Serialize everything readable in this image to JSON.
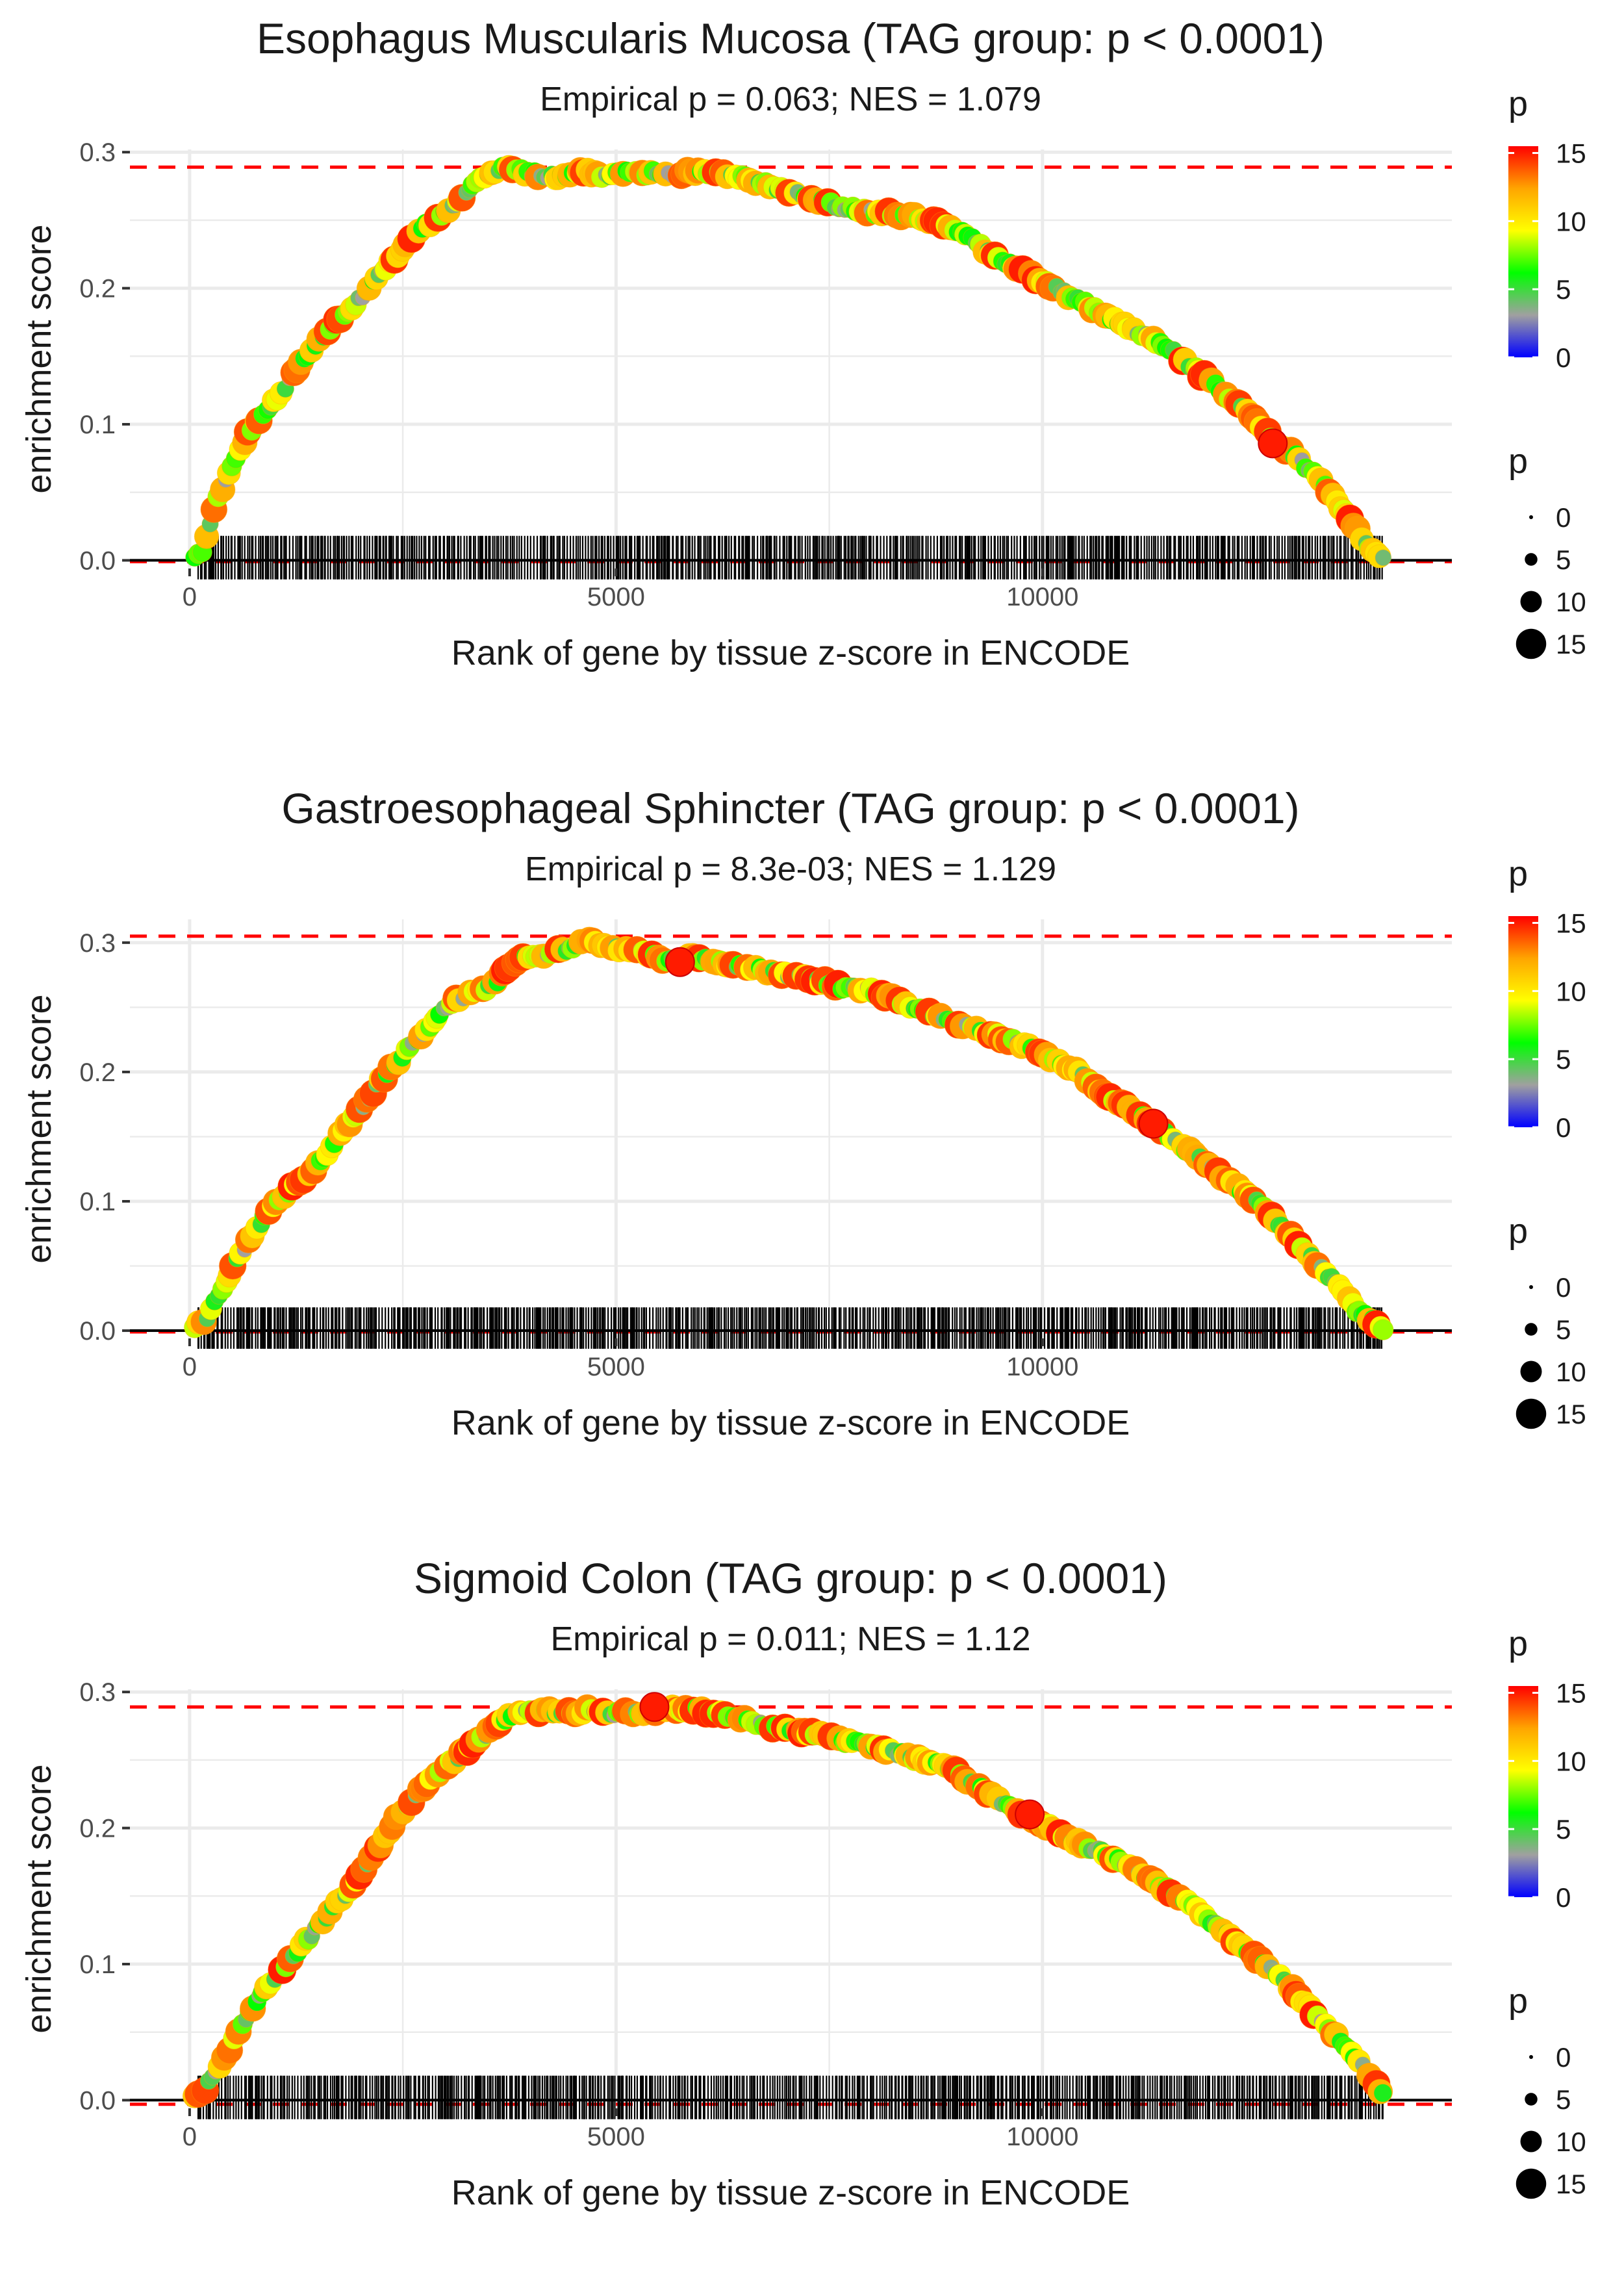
{
  "colors": {
    "panel_bg": "#ffffff",
    "grid": "#ebebeb",
    "ref_line": "#ff0000",
    "zero_line": "#000000",
    "ticks": "#000000",
    "text": "#1a1a1a",
    "axis_text": "#4d4d4d",
    "gradient": [
      "#0000ff",
      "#a0a0a0",
      "#00ff00",
      "#ffff00",
      "#ffa500",
      "#ff0000"
    ]
  },
  "chart_data": [
    {
      "type": "line",
      "title": "Esophagus Muscularis Mucosa (TAG group: p < 0.0001)",
      "subtitle": "Empirical p = 0.063; NES = 1.079",
      "xlabel": "Rank of gene by tissue z-score in ENCODE",
      "ylabel": "enrichment score",
      "xlim": [
        -700,
        14800
      ],
      "ylim": [
        -0.006,
        0.302
      ],
      "xticks": [
        0,
        5000,
        10000
      ],
      "xtick_labels": [
        "0",
        "5000",
        "10000"
      ],
      "yticks": [
        0.0,
        0.1,
        0.2,
        0.3
      ],
      "ytick_labels": [
        "0.0",
        "0.1",
        "0.2",
        "0.3"
      ],
      "max_es": 0.289,
      "min_es": -0.001,
      "legend_color": {
        "title": "p",
        "ticks": [
          "0",
          "5",
          "10",
          "15"
        ],
        "range": [
          0,
          15.5
        ]
      },
      "legend_size": {
        "title": "p",
        "labels": [
          "0",
          "5",
          "10",
          "15"
        ],
        "values": [
          0,
          5,
          10,
          15
        ]
      },
      "curve": {
        "x": [
          0,
          150,
          300,
          500,
          700,
          900,
          1100,
          1300,
          1500,
          1700,
          1900,
          2100,
          2300,
          2500,
          2700,
          2900,
          3100,
          3300,
          3500,
          3700,
          4000,
          4300,
          4600,
          4900,
          5200,
          5500,
          5800,
          6100,
          6400,
          6700,
          7000,
          7300,
          7600,
          7900,
          8200,
          8500,
          8800,
          9100,
          9400,
          9700,
          10000,
          10300,
          10600,
          10900,
          11200,
          11500,
          11800,
          12100,
          12400,
          12700,
          13000,
          13300,
          13600,
          13800,
          14000
        ],
        "y": [
          0,
          0.008,
          0.04,
          0.07,
          0.095,
          0.11,
          0.125,
          0.145,
          0.16,
          0.175,
          0.185,
          0.2,
          0.215,
          0.23,
          0.245,
          0.25,
          0.262,
          0.275,
          0.285,
          0.289,
          0.284,
          0.282,
          0.286,
          0.283,
          0.285,
          0.284,
          0.285,
          0.286,
          0.283,
          0.277,
          0.272,
          0.266,
          0.26,
          0.257,
          0.255,
          0.252,
          0.248,
          0.24,
          0.225,
          0.215,
          0.205,
          0.195,
          0.185,
          0.175,
          0.165,
          0.155,
          0.14,
          0.125,
          0.11,
          0.09,
          0.075,
          0.055,
          0.03,
          0.012,
          0.002
        ]
      },
      "highlights": [
        {
          "x": 12700,
          "y": 0.086,
          "p": 15
        }
      ]
    },
    {
      "type": "line",
      "title": "Gastroesophageal Sphincter (TAG group: p < 0.0001)",
      "subtitle": "Empirical p = 8.3e-03; NES = 1.129",
      "xlabel": "Rank of gene by tissue z-score in ENCODE",
      "ylabel": "enrichment score",
      "xlim": [
        -700,
        14800
      ],
      "ylim": [
        -0.006,
        0.318
      ],
      "xticks": [
        0,
        5000,
        10000
      ],
      "xtick_labels": [
        "0",
        "5000",
        "10000"
      ],
      "yticks": [
        0.0,
        0.1,
        0.2,
        0.3
      ],
      "ytick_labels": [
        "0.0",
        "0.1",
        "0.2",
        "0.3"
      ],
      "max_es": 0.305,
      "min_es": -0.001,
      "legend_color": {
        "title": "p",
        "ticks": [
          "0",
          "5",
          "10",
          "15"
        ],
        "range": [
          0,
          15.5
        ]
      },
      "legend_size": {
        "title": "p",
        "labels": [
          "0",
          "5",
          "10",
          "15"
        ],
        "values": [
          0,
          5,
          10,
          15
        ]
      },
      "curve": {
        "x": [
          0,
          200,
          400,
          600,
          800,
          1000,
          1200,
          1400,
          1600,
          1800,
          2000,
          2200,
          2400,
          2600,
          2800,
          3000,
          3200,
          3400,
          3600,
          3800,
          4000,
          4200,
          4400,
          4700,
          5000,
          5300,
          5600,
          5900,
          6200,
          6500,
          6800,
          7100,
          7400,
          7700,
          8000,
          8300,
          8600,
          8900,
          9200,
          9500,
          9800,
          10100,
          10400,
          10700,
          11000,
          11300,
          11600,
          11900,
          12200,
          12500,
          12800,
          13100,
          13400,
          13700,
          14000
        ],
        "y": [
          0,
          0.01,
          0.035,
          0.06,
          0.08,
          0.1,
          0.11,
          0.12,
          0.135,
          0.155,
          0.17,
          0.19,
          0.205,
          0.22,
          0.235,
          0.25,
          0.258,
          0.262,
          0.27,
          0.285,
          0.289,
          0.292,
          0.295,
          0.302,
          0.296,
          0.293,
          0.285,
          0.29,
          0.285,
          0.281,
          0.278,
          0.274,
          0.27,
          0.265,
          0.263,
          0.255,
          0.248,
          0.24,
          0.234,
          0.227,
          0.22,
          0.21,
          0.2,
          0.185,
          0.172,
          0.16,
          0.145,
          0.13,
          0.115,
          0.1,
          0.08,
          0.06,
          0.04,
          0.015,
          0.002
        ]
      },
      "highlights": [
        {
          "x": 5750,
          "y": 0.285,
          "p": 15
        },
        {
          "x": 11300,
          "y": 0.16,
          "p": 15
        }
      ]
    },
    {
      "type": "line",
      "title": "Sigmoid Colon (TAG group: p < 0.0001)",
      "subtitle": "Empirical p = 0.011; NES = 1.12",
      "xlabel": "Rank of gene by tissue z-score in ENCODE",
      "ylabel": "enrichment score",
      "xlim": [
        -700,
        14800
      ],
      "ylim": [
        -0.006,
        0.302
      ],
      "xticks": [
        0,
        5000,
        10000
      ],
      "xtick_labels": [
        "0",
        "5000",
        "10000"
      ],
      "yticks": [
        0.0,
        0.1,
        0.2,
        0.3
      ],
      "ytick_labels": [
        "0.0",
        "0.1",
        "0.2",
        "0.3"
      ],
      "max_es": 0.289,
      "min_es": -0.003,
      "legend_color": {
        "title": "p",
        "ticks": [
          "0",
          "5",
          "10",
          "15"
        ],
        "range": [
          0,
          15.5
        ]
      },
      "legend_size": {
        "title": "p",
        "labels": [
          "0",
          "5",
          "10",
          "15"
        ],
        "values": [
          0,
          5,
          10,
          15
        ]
      },
      "curve": {
        "x": [
          0,
          200,
          400,
          600,
          800,
          1000,
          1200,
          1400,
          1600,
          1800,
          2000,
          2200,
          2400,
          2600,
          2800,
          3000,
          3200,
          3400,
          3600,
          3800,
          4100,
          4400,
          4700,
          5000,
          5300,
          5600,
          5900,
          6200,
          6500,
          6800,
          7100,
          7400,
          7700,
          8000,
          8300,
          8600,
          8900,
          9200,
          9500,
          9800,
          10100,
          10400,
          10700,
          11000,
          11300,
          11600,
          11900,
          12200,
          12500,
          12800,
          13100,
          13400,
          13700,
          14000
        ],
        "y": [
          0,
          0.01,
          0.03,
          0.055,
          0.075,
          0.09,
          0.105,
          0.12,
          0.135,
          0.15,
          0.165,
          0.185,
          0.205,
          0.22,
          0.235,
          0.245,
          0.255,
          0.265,
          0.275,
          0.285,
          0.286,
          0.285,
          0.287,
          0.284,
          0.285,
          0.288,
          0.287,
          0.285,
          0.28,
          0.275,
          0.272,
          0.268,
          0.263,
          0.26,
          0.255,
          0.25,
          0.245,
          0.232,
          0.22,
          0.21,
          0.2,
          0.19,
          0.182,
          0.172,
          0.16,
          0.15,
          0.135,
          0.12,
          0.105,
          0.09,
          0.07,
          0.05,
          0.03,
          0.003
        ]
      },
      "highlights": [
        {
          "x": 5450,
          "y": 0.289,
          "p": 15
        },
        {
          "x": 9850,
          "y": 0.21,
          "p": 15
        }
      ]
    }
  ]
}
